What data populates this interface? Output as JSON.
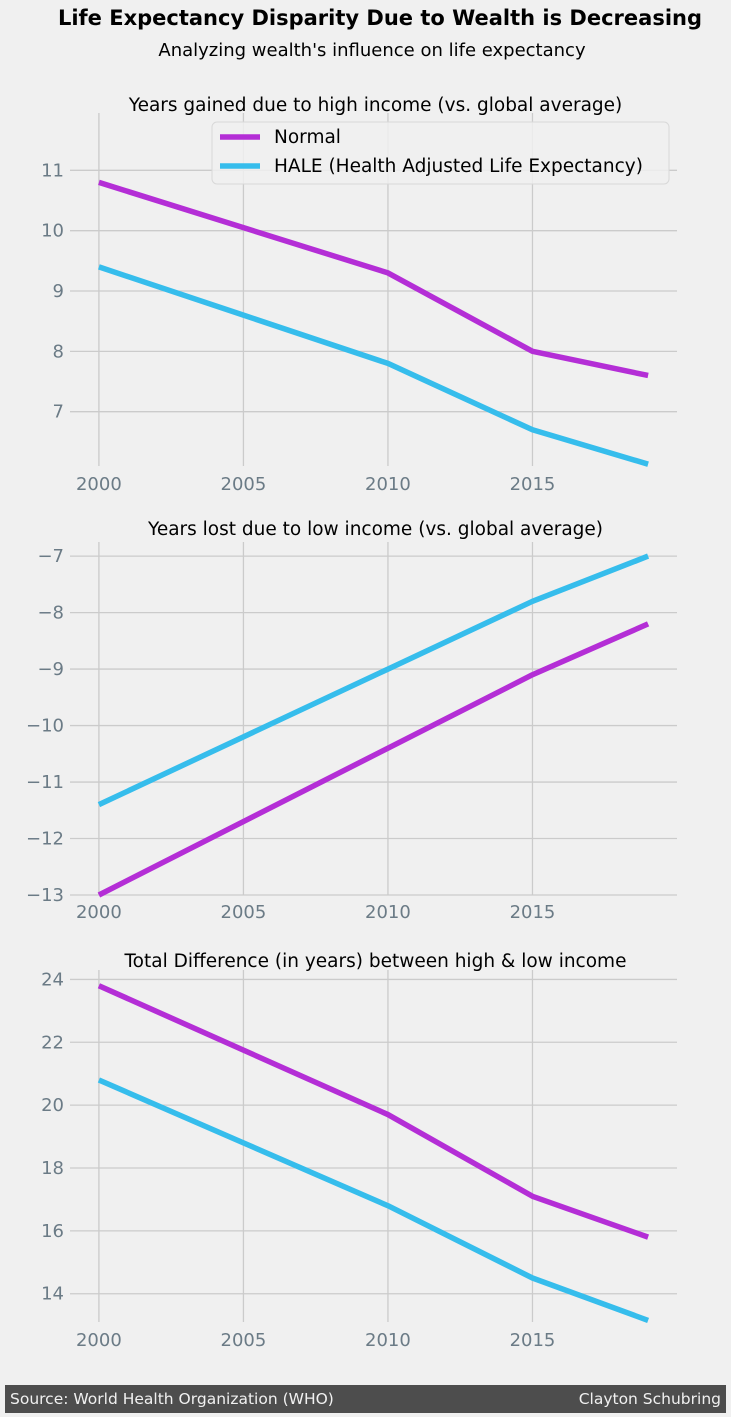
{
  "header": {
    "title": "Life Expectancy Disparity Due to Wealth is Decreasing",
    "subtitle": "Analyzing wealth's influence on life expectancy"
  },
  "footer": {
    "source": "Source: World Health Organization (WHO)",
    "author": "Clayton Schubring"
  },
  "colors": {
    "normal": "#b42ed6",
    "hale": "#36bdec",
    "background": "#f0f0f0",
    "grid": "#cbcbcb",
    "tick": "#6b7b86"
  },
  "chart_data": [
    {
      "type": "line",
      "title": "Years gained due to high income (vs. global average)",
      "x": [
        2000,
        2005,
        2010,
        2015,
        2019
      ],
      "xticks": [
        2000,
        2005,
        2010,
        2015
      ],
      "yticks": [
        7,
        8,
        9,
        10,
        11
      ],
      "ylim": [
        6.1,
        11.95
      ],
      "grid": true,
      "legend": "top-right",
      "series": [
        {
          "name": "Normal",
          "values": [
            10.8,
            10.05,
            9.3,
            8.0,
            7.6
          ]
        },
        {
          "name": "HALE (Health Adjusted Life Expectancy)",
          "values": [
            9.4,
            8.6,
            7.8,
            6.7,
            6.13
          ]
        }
      ]
    },
    {
      "type": "line",
      "title": "Years lost due to low income (vs. global average)",
      "x": [
        2000,
        2005,
        2010,
        2015,
        2019
      ],
      "xticks": [
        2000,
        2005,
        2010,
        2015
      ],
      "yticks": [
        -13,
        -12,
        -11,
        -10,
        -9,
        -8,
        -7
      ],
      "ylim": [
        -13.0,
        -6.75
      ],
      "grid": true,
      "series": [
        {
          "name": "Normal",
          "values": [
            -13.0,
            -11.7,
            -10.4,
            -9.1,
            -8.2
          ]
        },
        {
          "name": "HALE (Health Adjusted Life Expectancy)",
          "values": [
            -11.4,
            -10.2,
            -9.0,
            -7.8,
            -7.0
          ]
        }
      ]
    },
    {
      "type": "line",
      "title": "Total Difference (in years) between high & low income",
      "x": [
        2000,
        2005,
        2010,
        2015,
        2019
      ],
      "xticks": [
        2000,
        2005,
        2010,
        2015
      ],
      "yticks": [
        14,
        16,
        18,
        20,
        22,
        24
      ],
      "ylim": [
        13.1,
        24.3
      ],
      "grid": true,
      "series": [
        {
          "name": "Normal",
          "values": [
            23.8,
            21.75,
            19.7,
            17.1,
            15.8
          ]
        },
        {
          "name": "HALE (Health Adjusted Life Expectancy)",
          "values": [
            20.8,
            18.8,
            16.8,
            14.5,
            13.15
          ]
        }
      ]
    }
  ]
}
